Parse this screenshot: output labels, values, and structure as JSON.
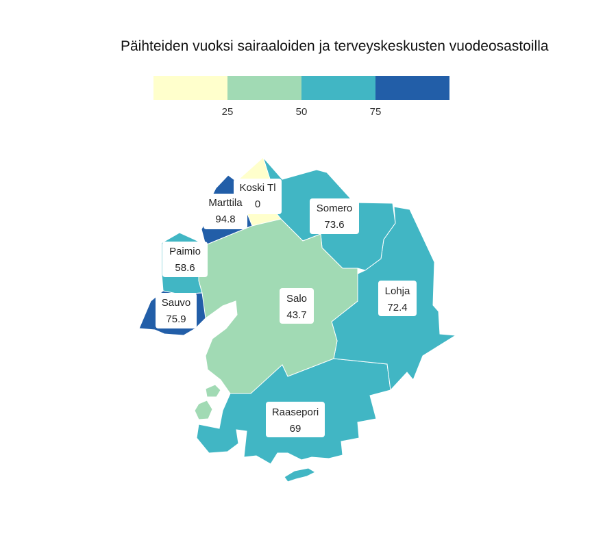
{
  "title": "Päihteiden vuoksi sairaaloiden ja terveyskeskusten vuodeosastoilla",
  "legend": {
    "colors": [
      "#ffffcc",
      "#a1dab4",
      "#41b6c4",
      "#225ea8"
    ],
    "ticks": [
      "25",
      "50",
      "75"
    ]
  },
  "regions": [
    {
      "name": "Koski Tl",
      "value": "0",
      "color": "#ffffcc"
    },
    {
      "name": "Marttila",
      "value": "94.8",
      "color": "#225ea8"
    },
    {
      "name": "Somero",
      "value": "73.6",
      "color": "#41b6c4"
    },
    {
      "name": "Paimio",
      "value": "58.6",
      "color": "#41b6c4"
    },
    {
      "name": "Sauvo",
      "value": "75.9",
      "color": "#225ea8"
    },
    {
      "name": "Salo",
      "value": "43.7",
      "color": "#a1dab4"
    },
    {
      "name": "Lohja",
      "value": "72.4",
      "color": "#41b6c4"
    },
    {
      "name": "Raasepori",
      "value": "69",
      "color": "#41b6c4"
    }
  ]
}
